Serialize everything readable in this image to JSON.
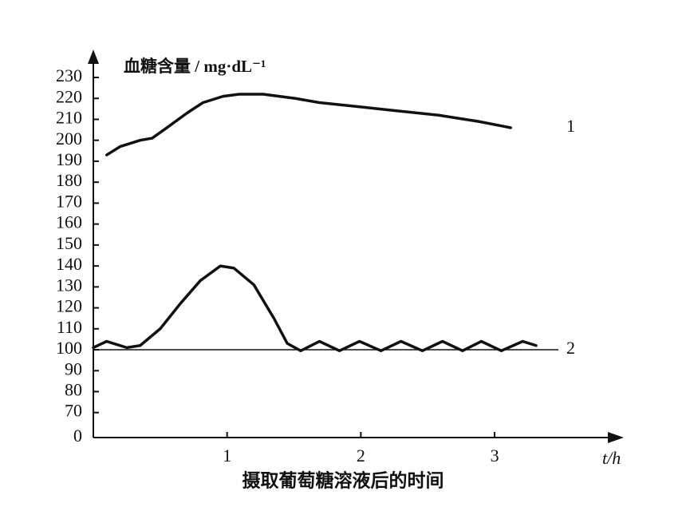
{
  "chart_data": {
    "type": "line",
    "y_label": "血糖含量 / mg·dL⁻¹",
    "x_label": "t/h",
    "x_title": "摄取葡萄糖溶液后的时间",
    "xlim": [
      0,
      3.95
    ],
    "xticks": [
      1,
      2,
      3
    ],
    "ylim": [
      0,
      240
    ],
    "yticks": [
      0,
      70,
      80,
      90,
      100,
      110,
      120,
      130,
      140,
      150,
      160,
      170,
      180,
      190,
      200,
      210,
      220,
      230
    ],
    "reference_line": 100,
    "series": [
      {
        "name": "1",
        "color": "#111111",
        "x": [
          0.1,
          0.2,
          0.35,
          0.44,
          0.55,
          0.7,
          0.82,
          0.97,
          1.09,
          1.27,
          1.51,
          1.69,
          1.99,
          2.28,
          2.58,
          2.88,
          3.12
        ],
        "values": [
          193,
          197,
          200,
          201,
          206,
          213,
          218,
          221,
          222,
          222,
          220,
          218,
          216,
          214,
          212,
          209,
          206
        ]
      },
      {
        "name": "2",
        "color": "#111111",
        "x": [
          0,
          0.1,
          0.25,
          0.35,
          0.5,
          0.65,
          0.8,
          0.95,
          1.05,
          1.2,
          1.35,
          1.45,
          1.55,
          1.69,
          1.84,
          1.99,
          2.15,
          2.3,
          2.46,
          2.61,
          2.76,
          2.9,
          3.05,
          3.21,
          3.31
        ],
        "values": [
          101,
          104,
          101,
          102,
          110,
          122,
          133,
          140,
          139,
          131,
          115,
          103,
          99.5,
          104,
          99.5,
          104,
          99.5,
          104,
          99.5,
          104,
          99.5,
          104,
          99.5,
          104,
          102
        ]
      }
    ]
  }
}
